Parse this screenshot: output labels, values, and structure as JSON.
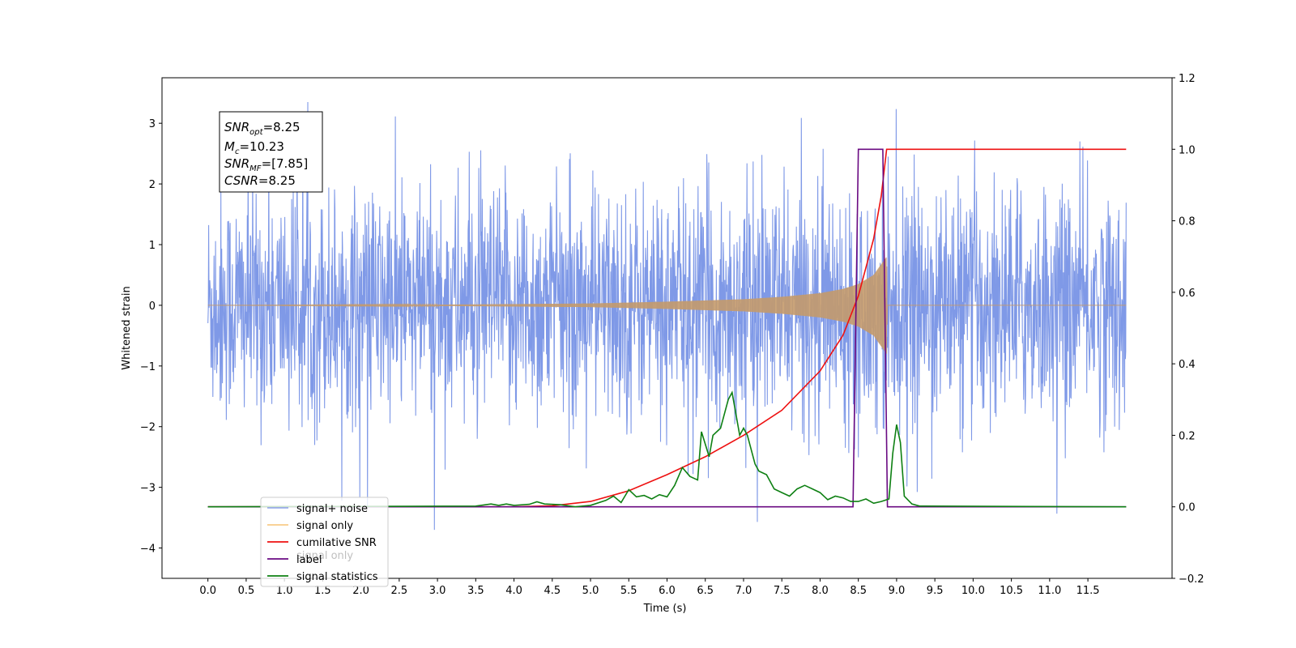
{
  "chart_data": {
    "type": "line",
    "xlabel": "Time (s)",
    "ylabel": "Whitened strain",
    "xlim": [
      -0.6,
      12.6
    ],
    "ylim_left": [
      -4.5,
      3.75
    ],
    "ylim_right": [
      -0.2,
      1.2
    ],
    "x_ticks": [
      0.0,
      0.5,
      1.0,
      1.5,
      2.0,
      2.5,
      3.0,
      3.5,
      4.0,
      4.5,
      5.0,
      5.5,
      6.0,
      6.5,
      7.0,
      7.5,
      8.0,
      8.5,
      9.0,
      9.5,
      10.0,
      10.5,
      11.0,
      11.5
    ],
    "x_tick_labels": [
      "0.0",
      "0.5",
      "1.0",
      "1.5",
      "2.0",
      "2.5",
      "3.0",
      "3.5",
      "4.0",
      "4.5",
      "5.0",
      "5.5",
      "6.0",
      "6.5",
      "7.0",
      "7.5",
      "8.0",
      "8.5",
      "9.0",
      "9.5",
      "10.0",
      "10.5",
      "11.0",
      "11.5"
    ],
    "y_left_ticks": [
      -4,
      -3,
      -2,
      -1,
      0,
      1,
      2,
      3
    ],
    "y_left_tick_labels": [
      "−4",
      "−3",
      "−2",
      "−1",
      "0",
      "1",
      "2",
      "3"
    ],
    "y_right_ticks": [
      -0.2,
      0.0,
      0.2,
      0.4,
      0.6,
      0.8,
      1.0,
      1.2
    ],
    "y_right_tick_labels": [
      "−0.2",
      "0.0",
      "0.2",
      "0.4",
      "0.6",
      "0.8",
      "1.0",
      "1.2"
    ],
    "annotation": {
      "snr_opt": {
        "base": "SNR",
        "sub": "opt",
        "value": "=8.25"
      },
      "mc": {
        "base": "M",
        "sub": "c",
        "value": "=10.23"
      },
      "snr_mf": {
        "base": "SNR",
        "sub": "MF",
        "value": "=[7.85]"
      },
      "csnr": {
        "base": "CSNR",
        "value": "=8.25"
      }
    },
    "legend_position": "lower-left",
    "series": [
      {
        "name": "signal+ noise",
        "axis": "left",
        "color": "#7893e6",
        "description": "whitened noise, amplitude ~1.5 sigma band with spikes to ~3.3",
        "x_range": [
          0.0,
          12.0
        ],
        "envelope": [
          -3.7,
          3.35
        ]
      },
      {
        "name": "signal only",
        "axis": "left",
        "color": "#c49a6c",
        "description": "chirp growing in amplitude until merger",
        "x": [
          0.0,
          3.0,
          5.0,
          6.0,
          7.0,
          7.5,
          8.0,
          8.3,
          8.5,
          8.7,
          8.87,
          8.88,
          12.0
        ],
        "envelope": [
          0.0,
          0.01,
          0.03,
          0.06,
          0.1,
          0.14,
          0.2,
          0.27,
          0.35,
          0.5,
          0.8,
          0.0,
          0.0
        ]
      },
      {
        "name": "cumilative SNR",
        "axis": "right",
        "color": "#ee1111",
        "x": [
          0.0,
          4.0,
          4.5,
          5.0,
          5.5,
          6.0,
          6.5,
          7.0,
          7.5,
          8.0,
          8.3,
          8.5,
          8.7,
          8.8,
          8.87,
          8.9,
          12.0
        ],
        "y": [
          0.0,
          0.0,
          0.003,
          0.015,
          0.045,
          0.09,
          0.14,
          0.2,
          0.27,
          0.38,
          0.48,
          0.59,
          0.75,
          0.87,
          1.0,
          1.0,
          1.0
        ]
      },
      {
        "name": "label",
        "axis": "right",
        "color": "#6a0a82",
        "x": [
          0.0,
          8.43,
          8.5,
          8.82,
          8.88,
          12.0
        ],
        "y": [
          0.0,
          0.0,
          1.0,
          1.0,
          0.0,
          0.0
        ]
      },
      {
        "name": "signal statistics",
        "axis": "right",
        "color": "#0e8013",
        "x": [
          0.0,
          3.5,
          3.7,
          3.8,
          3.9,
          4.0,
          4.2,
          4.3,
          4.4,
          4.6,
          4.8,
          5.0,
          5.2,
          5.3,
          5.4,
          5.5,
          5.6,
          5.7,
          5.8,
          5.9,
          6.0,
          6.1,
          6.2,
          6.3,
          6.4,
          6.45,
          6.55,
          6.6,
          6.7,
          6.8,
          6.85,
          6.9,
          6.95,
          7.0,
          7.05,
          7.15,
          7.2,
          7.3,
          7.4,
          7.5,
          7.6,
          7.7,
          7.8,
          7.9,
          8.0,
          8.1,
          8.2,
          8.3,
          8.4,
          8.5,
          8.6,
          8.7,
          8.8,
          8.9,
          8.95,
          9.0,
          9.05,
          9.1,
          9.2,
          9.3,
          12.0
        ],
        "y": [
          0.0,
          0.002,
          0.008,
          0.004,
          0.008,
          0.004,
          0.007,
          0.014,
          0.008,
          0.006,
          0.0,
          0.004,
          0.018,
          0.03,
          0.012,
          0.048,
          0.028,
          0.032,
          0.022,
          0.034,
          0.028,
          0.06,
          0.11,
          0.085,
          0.075,
          0.21,
          0.14,
          0.2,
          0.22,
          0.3,
          0.32,
          0.26,
          0.2,
          0.22,
          0.2,
          0.12,
          0.1,
          0.09,
          0.05,
          0.04,
          0.03,
          0.05,
          0.06,
          0.05,
          0.04,
          0.02,
          0.03,
          0.025,
          0.015,
          0.015,
          0.022,
          0.01,
          0.015,
          0.022,
          0.15,
          0.23,
          0.18,
          0.03,
          0.008,
          0.002,
          0.0
        ]
      }
    ],
    "legend_overlap_text": "signal only"
  }
}
